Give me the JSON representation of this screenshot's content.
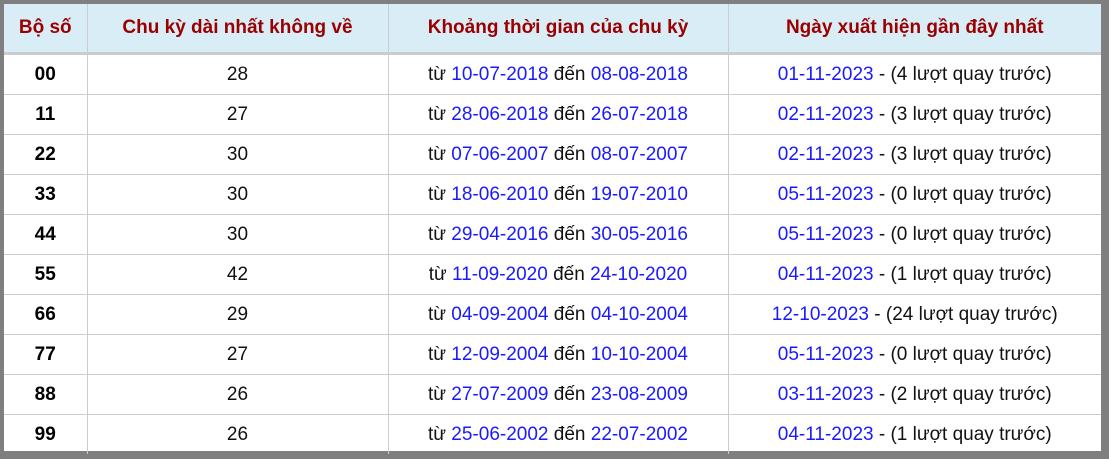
{
  "headers": [
    "Bộ số",
    "Chu kỳ dài nhất không về",
    "Khoảng thời gian của chu kỳ",
    "Ngày xuất hiện gần đây nhất"
  ],
  "labels": {
    "from": "từ",
    "to": "đến"
  },
  "colors": {
    "header_bg": "#d9edf7",
    "header_text": "#9a0000",
    "date_link": "#1a1aff",
    "frame": "#7f7f7f"
  },
  "rows": [
    {
      "pair": "00",
      "cycle": "28",
      "start": "10-07-2018",
      "end": "08-08-2018",
      "last": "01-11-2023",
      "ago": " - (4 lượt quay trước)"
    },
    {
      "pair": "11",
      "cycle": "27",
      "start": "28-06-2018",
      "end": "26-07-2018",
      "last": "02-11-2023",
      "ago": " - (3 lượt quay trước)"
    },
    {
      "pair": "22",
      "cycle": "30",
      "start": "07-06-2007",
      "end": "08-07-2007",
      "last": "02-11-2023",
      "ago": " - (3 lượt quay trước)"
    },
    {
      "pair": "33",
      "cycle": "30",
      "start": "18-06-2010",
      "end": "19-07-2010",
      "last": "05-11-2023",
      "ago": " - (0 lượt quay trước)"
    },
    {
      "pair": "44",
      "cycle": "30",
      "start": "29-04-2016",
      "end": "30-05-2016",
      "last": "05-11-2023",
      "ago": " - (0 lượt quay trước)"
    },
    {
      "pair": "55",
      "cycle": "42",
      "start": "11-09-2020",
      "end": "24-10-2020",
      "last": "04-11-2023",
      "ago": " - (1 lượt quay trước)"
    },
    {
      "pair": "66",
      "cycle": "29",
      "start": "04-09-2004",
      "end": "04-10-2004",
      "last": "12-10-2023",
      "ago": " - (24 lượt quay trước)"
    },
    {
      "pair": "77",
      "cycle": "27",
      "start": "12-09-2004",
      "end": "10-10-2004",
      "last": "05-11-2023",
      "ago": " - (0 lượt quay trước)"
    },
    {
      "pair": "88",
      "cycle": "26",
      "start": "27-07-2009",
      "end": "23-08-2009",
      "last": "03-11-2023",
      "ago": " - (2 lượt quay trước)"
    },
    {
      "pair": "99",
      "cycle": "26",
      "start": "25-06-2002",
      "end": "22-07-2002",
      "last": "04-11-2023",
      "ago": " - (1 lượt quay trước)"
    }
  ]
}
